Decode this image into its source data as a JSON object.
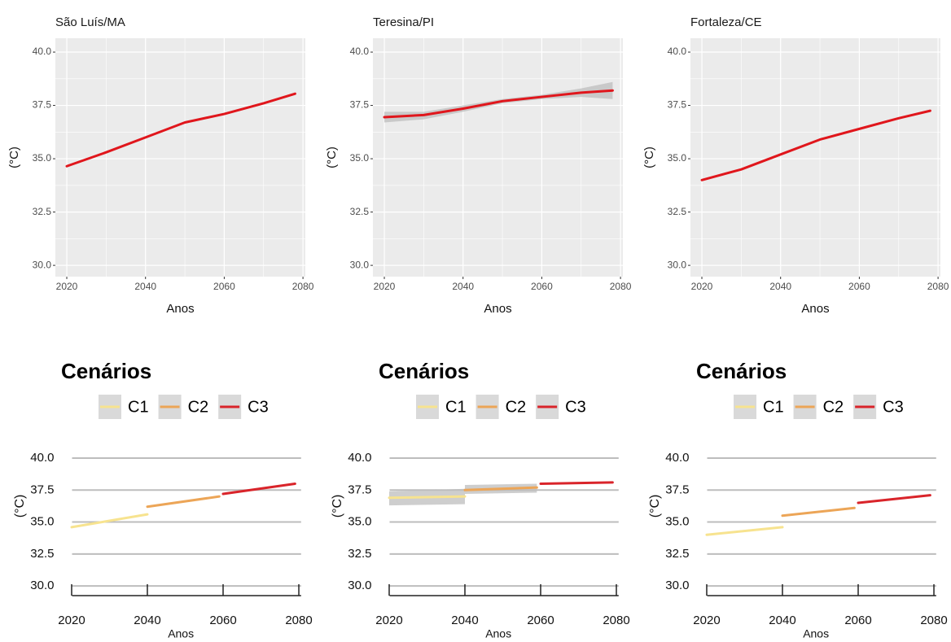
{
  "chart_data": [
    {
      "type": "line",
      "theme": "gray",
      "title": "São Luís/MA",
      "xlabel": "Anos",
      "ylabel": "(°C)",
      "series": [
        {
          "color": "#e0161c",
          "x": [
            2020,
            2030,
            2040,
            2050,
            2060,
            2070,
            2078
          ],
          "values": [
            34.65,
            35.3,
            36.0,
            36.7,
            37.1,
            37.6,
            38.05
          ]
        }
      ],
      "xlim": [
        2017.1,
        2080.6
      ],
      "xticks": [
        2020,
        2040,
        2060,
        2080
      ],
      "ylim": [
        29.47,
        40.65
      ],
      "yticks": [
        {
          "value": 30,
          "label": "30.0"
        },
        32.5,
        {
          "value": 35,
          "label": "35.0"
        },
        37.5,
        {
          "value": 40,
          "label": "40.0"
        }
      ],
      "grid": true
    },
    {
      "type": "line",
      "theme": "gray",
      "title": "Teresina/PI",
      "xlabel": "Anos",
      "ylabel": "(°C)",
      "series": [
        {
          "color": "#e0161c",
          "x": [
            2020,
            2030,
            2040,
            2050,
            2060,
            2070,
            2078
          ],
          "values": [
            36.95,
            37.05,
            37.35,
            37.7,
            37.9,
            38.1,
            38.2
          ],
          "lower": [
            36.7,
            36.85,
            37.2,
            37.6,
            37.8,
            37.9,
            37.8
          ],
          "upper": [
            37.2,
            37.2,
            37.5,
            37.8,
            38.0,
            38.3,
            38.6
          ]
        }
      ],
      "xlim": [
        2017.1,
        2080.6
      ],
      "xticks": [
        2020,
        2040,
        2060,
        2080
      ],
      "ylim": [
        29.47,
        40.65
      ],
      "yticks": [
        {
          "value": 30,
          "label": "30.0"
        },
        32.5,
        {
          "value": 35,
          "label": "35.0"
        },
        37.5,
        {
          "value": 40,
          "label": "40.0"
        }
      ],
      "grid": true
    },
    {
      "type": "line",
      "theme": "gray",
      "title": "Fortaleza/CE",
      "xlabel": "Anos",
      "ylabel": "(°C)",
      "series": [
        {
          "color": "#e0161c",
          "x": [
            2020,
            2030,
            2040,
            2050,
            2060,
            2070,
            2078
          ],
          "values": [
            34.0,
            34.5,
            35.2,
            35.9,
            36.4,
            36.9,
            37.25
          ]
        }
      ],
      "xlim": [
        2017.1,
        2080.6
      ],
      "xticks": [
        2020,
        2040,
        2060,
        2080
      ],
      "ylim": [
        29.47,
        40.65
      ],
      "yticks": [
        {
          "value": 30,
          "label": "30.0"
        },
        32.5,
        {
          "value": 35,
          "label": "35.0"
        },
        37.5,
        {
          "value": 40,
          "label": "40.0"
        }
      ],
      "grid": true
    },
    {
      "type": "line",
      "theme": "classic",
      "legend_title": "Cenários",
      "xlabel": "Anos",
      "ylabel": "(°C)",
      "series": [
        {
          "name": "C1",
          "color": "#f7e38f",
          "x": [
            2020,
            2040
          ],
          "values": [
            34.6,
            35.6
          ]
        },
        {
          "name": "C2",
          "color": "#eca557",
          "x": [
            2040,
            2059
          ],
          "values": [
            36.2,
            37.0
          ]
        },
        {
          "name": "C3",
          "color": "#d9242a",
          "x": [
            2060,
            2079
          ],
          "values": [
            37.2,
            38.0
          ]
        }
      ],
      "xlim": [
        2017.1,
        2080.6
      ],
      "xticks": [
        2020,
        2040,
        2060,
        2080
      ],
      "ylim": [
        29.24,
        41.15
      ],
      "yticks": [
        {
          "value": 30,
          "label": "30.0"
        },
        32.5,
        {
          "value": 35,
          "label": "35.0"
        },
        37.5,
        {
          "value": 40,
          "label": "40.0"
        }
      ],
      "grid": true
    },
    {
      "type": "line",
      "theme": "classic",
      "legend_title": "Cenários",
      "xlabel": "Anos",
      "ylabel": "(°C)",
      "series": [
        {
          "name": "C1",
          "color": "#f7e38f",
          "x": [
            2020,
            2040
          ],
          "values": [
            36.9,
            37.0
          ],
          "lower": [
            36.3,
            36.4
          ],
          "upper": [
            37.4,
            37.6
          ]
        },
        {
          "name": "C2",
          "color": "#eca557",
          "x": [
            2040,
            2059
          ],
          "values": [
            37.5,
            37.7
          ],
          "lower": [
            37.2,
            37.3
          ],
          "upper": [
            37.9,
            38.0
          ]
        },
        {
          "name": "C3",
          "color": "#d9242a",
          "x": [
            2060,
            2079
          ],
          "values": [
            38.0,
            38.1
          ]
        }
      ],
      "xlim": [
        2017.1,
        2080.6
      ],
      "xticks": [
        2020,
        2040,
        2060,
        2080
      ],
      "ylim": [
        29.24,
        41.15
      ],
      "yticks": [
        {
          "value": 30,
          "label": "30.0"
        },
        32.5,
        {
          "value": 35,
          "label": "35.0"
        },
        37.5,
        {
          "value": 40,
          "label": "40.0"
        }
      ],
      "grid": true
    },
    {
      "type": "line",
      "theme": "classic",
      "legend_title": "Cenários",
      "xlabel": "Anos",
      "ylabel": "(°C)",
      "series": [
        {
          "name": "C1",
          "color": "#f7e38f",
          "x": [
            2020,
            2040
          ],
          "values": [
            34.0,
            34.6
          ]
        },
        {
          "name": "C2",
          "color": "#eca557",
          "x": [
            2040,
            2059
          ],
          "values": [
            35.5,
            36.1
          ]
        },
        {
          "name": "C3",
          "color": "#d9242a",
          "x": [
            2060,
            2079
          ],
          "values": [
            36.5,
            37.1
          ]
        }
      ],
      "xlim": [
        2017.1,
        2080.6
      ],
      "xticks": [
        2020,
        2040,
        2060,
        2080
      ],
      "ylim": [
        29.24,
        41.15
      ],
      "yticks": [
        {
          "value": 30,
          "label": "30.0"
        },
        32.5,
        {
          "value": 35,
          "label": "35.0"
        },
        37.5,
        {
          "value": 40,
          "label": "40.0"
        }
      ],
      "grid": true
    }
  ]
}
